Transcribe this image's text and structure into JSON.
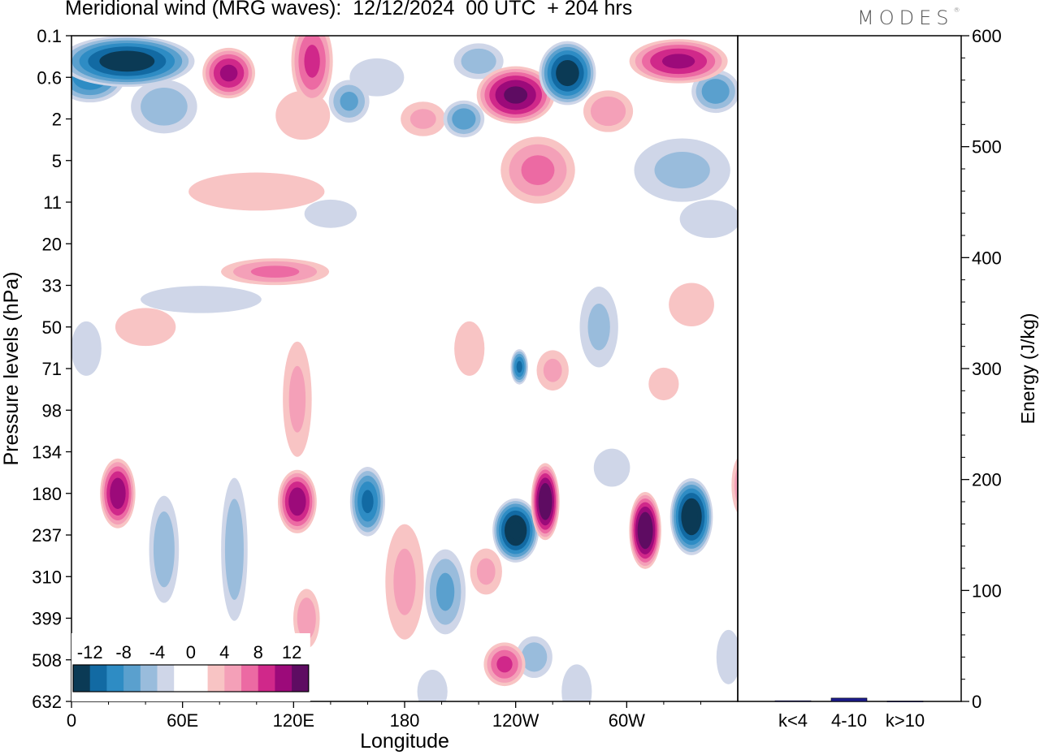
{
  "title": "Meridional wind (MRG waves):  12/12/2024  00 UTC  + 204 hrs",
  "brand": "MODES",
  "brand_mark": "®",
  "chart_data": [
    {
      "type": "heatmap",
      "title": "Meridional wind (MRG waves):  12/12/2024  00 UTC  + 204 hrs",
      "xlabel": "Longitude",
      "ylabel": "Pressure levels (hPa)",
      "x_ticks": [
        "0",
        "60E",
        "120E",
        "180",
        "120W",
        "60W"
      ],
      "y_ticks": [
        "0.1",
        "0.6",
        "2",
        "5",
        "11",
        "20",
        "33",
        "50",
        "71",
        "98",
        "134",
        "180",
        "237",
        "310",
        "399",
        "508",
        "632"
      ],
      "colorbar": {
        "labels": [
          "-12",
          "-8",
          "-4",
          "0",
          "4",
          "8",
          "12"
        ],
        "colors": [
          "#0b3a55",
          "#126aa3",
          "#2e8cc4",
          "#5aa0ce",
          "#99bcdc",
          "#cfd6e8",
          "#ffffff",
          "#ffffff",
          "#f8c4c4",
          "#f4a0b8",
          "#ec6aa3",
          "#d0288a",
          "#9c0a7a",
          "#5e0c62"
        ]
      },
      "features": [
        {
          "lon": 30,
          "p": 0.3,
          "value": -13,
          "rx": 38,
          "ry": 0.4
        },
        {
          "lon": 10,
          "p": 0.6,
          "value": -9,
          "rx": 20,
          "ry": 0.4
        },
        {
          "lon": 85,
          "p": 0.5,
          "value": 10,
          "rx": 15,
          "ry": 0.4
        },
        {
          "lon": 130,
          "p": 0.3,
          "value": 8,
          "rx": 12,
          "ry": 0.7
        },
        {
          "lon": 220,
          "p": 0.3,
          "value": -5,
          "rx": 15,
          "ry": 0.3
        },
        {
          "lon": 268,
          "p": 0.5,
          "value": -13,
          "rx": 16,
          "ry": 0.5
        },
        {
          "lon": 240,
          "p": 1.0,
          "value": 12,
          "rx": 22,
          "ry": 0.45
        },
        {
          "lon": 328,
          "p": 0.3,
          "value": 10,
          "rx": 28,
          "ry": 0.35
        },
        {
          "lon": 348,
          "p": 0.9,
          "value": -7,
          "rx": 14,
          "ry": 0.35
        },
        {
          "lon": 165,
          "p": 0.6,
          "value": -3,
          "rx": 18,
          "ry": 0.35
        },
        {
          "lon": 50,
          "p": 1.4,
          "value": -5,
          "rx": 20,
          "ry": 0.45
        },
        {
          "lon": 150,
          "p": 1.2,
          "value": -6,
          "rx": 12,
          "ry": 0.35
        },
        {
          "lon": 212,
          "p": 2.0,
          "value": -7,
          "rx": 12,
          "ry": 0.3
        },
        {
          "lon": 190,
          "p": 2.0,
          "value": 4,
          "rx": 14,
          "ry": 0.3
        },
        {
          "lon": 125,
          "p": 1.8,
          "value": 3,
          "rx": 18,
          "ry": 0.45
        },
        {
          "lon": 252,
          "p": 6.0,
          "value": 6,
          "rx": 22,
          "ry": 0.55
        },
        {
          "lon": 290,
          "p": 1.6,
          "value": 5,
          "rx": 15,
          "ry": 0.35
        },
        {
          "lon": 330,
          "p": 6.0,
          "value": -4,
          "rx": 30,
          "ry": 0.55
        },
        {
          "lon": 100,
          "p": 9.0,
          "value": 3,
          "rx": 45,
          "ry": 0.35
        },
        {
          "lon": 140,
          "p": 13.0,
          "value": -2,
          "rx": 20,
          "ry": 0.3
        },
        {
          "lon": 345,
          "p": 14.0,
          "value": -3,
          "rx": 20,
          "ry": 0.35
        },
        {
          "lon": 110,
          "p": 28.0,
          "value": 6,
          "rx": 32,
          "ry": 0.22
        },
        {
          "lon": 70,
          "p": 38.0,
          "value": -3,
          "rx": 40,
          "ry": 0.25
        },
        {
          "lon": 40,
          "p": 50.0,
          "value": 3,
          "rx": 20,
          "ry": 0.35
        },
        {
          "lon": 8,
          "p": 60.0,
          "value": -3,
          "rx": 10,
          "ry": 0.5
        },
        {
          "lon": 285,
          "p": 50.0,
          "value": -4,
          "rx": 12,
          "ry": 0.7
        },
        {
          "lon": 335,
          "p": 40.0,
          "value": 3,
          "rx": 15,
          "ry": 0.4
        },
        {
          "lon": 260,
          "p": 72.0,
          "value": 4,
          "rx": 10,
          "ry": 0.35
        },
        {
          "lon": 242,
          "p": 70.0,
          "value": -10,
          "rx": 5,
          "ry": 0.28
        },
        {
          "lon": 215,
          "p": 60.0,
          "value": 3,
          "rx": 10,
          "ry": 0.5
        },
        {
          "lon": 320,
          "p": 80.0,
          "value": 3,
          "rx": 10,
          "ry": 0.3
        },
        {
          "lon": 122,
          "p": 90.0,
          "value": 4,
          "rx": 9,
          "ry": 1.0
        },
        {
          "lon": 25,
          "p": 180.0,
          "value": 11,
          "rx": 10,
          "ry": 0.55
        },
        {
          "lon": 50,
          "p": 260.0,
          "value": -5,
          "rx": 9,
          "ry": 0.9
        },
        {
          "lon": 88,
          "p": 260.0,
          "value": -5,
          "rx": 8,
          "ry": 1.2
        },
        {
          "lon": 122,
          "p": 190.0,
          "value": 11,
          "rx": 11,
          "ry": 0.5
        },
        {
          "lon": 127,
          "p": 400.0,
          "value": 5,
          "rx": 8,
          "ry": 0.5
        },
        {
          "lon": 160,
          "p": 190.0,
          "value": -10,
          "rx": 10,
          "ry": 0.55
        },
        {
          "lon": 180,
          "p": 320.0,
          "value": 4,
          "rx": 12,
          "ry": 1.0
        },
        {
          "lon": 202,
          "p": 340.0,
          "value": -6,
          "rx": 12,
          "ry": 0.7
        },
        {
          "lon": 240,
          "p": 230.0,
          "value": -14,
          "rx": 13,
          "ry": 0.5
        },
        {
          "lon": 256,
          "p": 190.0,
          "value": 14,
          "rx": 8,
          "ry": 0.6
        },
        {
          "lon": 234,
          "p": 520.0,
          "value": 8,
          "rx": 12,
          "ry": 0.35
        },
        {
          "lon": 250,
          "p": 500.0,
          "value": -5,
          "rx": 11,
          "ry": 0.35
        },
        {
          "lon": 224,
          "p": 300.0,
          "value": 4,
          "rx": 10,
          "ry": 0.4
        },
        {
          "lon": 273,
          "p": 600.0,
          "value": -3,
          "rx": 10,
          "ry": 0.5
        },
        {
          "lon": 310,
          "p": 230.0,
          "value": 14,
          "rx": 9,
          "ry": 0.6
        },
        {
          "lon": 335,
          "p": 210.0,
          "value": -14,
          "rx": 12,
          "ry": 0.6
        },
        {
          "lon": 292,
          "p": 150.0,
          "value": -3,
          "rx": 12,
          "ry": 0.35
        },
        {
          "lon": 362,
          "p": 170.0,
          "value": 5,
          "rx": 6,
          "ry": 0.5
        },
        {
          "lon": 355,
          "p": 500.0,
          "value": -3,
          "rx": 8,
          "ry": 0.5
        },
        {
          "lon": 195,
          "p": 600.0,
          "value": -3,
          "rx": 10,
          "ry": 0.4
        }
      ]
    },
    {
      "type": "bar",
      "ylabel": "Energy (J/kg)",
      "categories": [
        "k<4",
        "4-10",
        "k>10"
      ],
      "values": [
        0.6,
        3.0,
        0.3
      ],
      "ylim": [
        0,
        600
      ],
      "y_ticks": [
        "0",
        "100",
        "200",
        "300",
        "400",
        "500",
        "600"
      ],
      "bar_color": "#1c1c8c"
    }
  ]
}
